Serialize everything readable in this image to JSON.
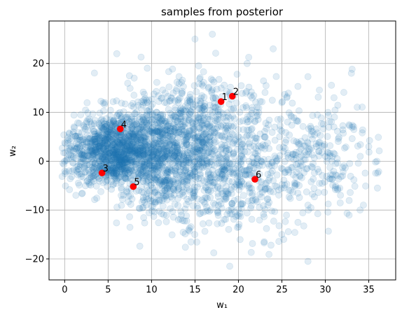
{
  "chart_data": {
    "type": "scatter",
    "title": "samples from posterior",
    "xlabel": "w₁",
    "ylabel": "w₂",
    "xlim": [
      -1.8,
      38.1
    ],
    "ylim": [
      -24.3,
      28.7
    ],
    "xticks": [
      0,
      5,
      10,
      15,
      20,
      25,
      30,
      35
    ],
    "yticks": [
      -20,
      -10,
      0,
      10,
      20
    ],
    "grid": true,
    "colors": {
      "samples": "#1f77b4",
      "highlight": "#ff0000",
      "grid": "#b0b0b0"
    },
    "series": [
      {
        "kind": "cloud",
        "opacity": 0.13,
        "count": 3000,
        "description_points": [
          [
            2,
            2
          ],
          [
            3,
            4
          ],
          [
            4,
            0
          ],
          [
            5,
            6
          ],
          [
            6,
            3
          ],
          [
            7,
            -2
          ],
          [
            8,
            5
          ],
          [
            9,
            1
          ],
          [
            10,
            8
          ],
          [
            11,
            -4
          ],
          [
            12,
            4
          ],
          [
            13,
            0
          ],
          [
            14,
            6
          ],
          [
            15,
            -6
          ],
          [
            16,
            3
          ],
          [
            17,
            10
          ],
          [
            18,
            -2
          ],
          [
            19,
            14
          ],
          [
            20,
            0
          ],
          [
            21,
            8
          ],
          [
            22,
            -8
          ],
          [
            23,
            5
          ],
          [
            24,
            -4
          ],
          [
            25,
            12
          ],
          [
            26,
            -6
          ],
          [
            27,
            2
          ],
          [
            28,
            -9
          ],
          [
            30,
            1
          ],
          [
            31,
            13
          ],
          [
            32,
            -3
          ],
          [
            33,
            18
          ],
          [
            34,
            -10
          ],
          [
            35,
            3
          ],
          [
            36,
            -5.5
          ],
          [
            17,
            26
          ],
          [
            19,
            -21.5
          ],
          [
            28,
            -20.5
          ],
          [
            8,
            17
          ],
          [
            15,
            25
          ],
          [
            21,
            20
          ],
          [
            1,
            6
          ],
          [
            0.5,
            -2
          ],
          [
            0,
            0
          ],
          [
            6,
            22
          ],
          [
            24,
            23
          ]
        ]
      }
    ],
    "highlighted": [
      {
        "label": "1",
        "x": 18.0,
        "y": 12.2
      },
      {
        "label": "2",
        "x": 19.3,
        "y": 13.3
      },
      {
        "label": "3",
        "x": 4.3,
        "y": -2.4
      },
      {
        "label": "4",
        "x": 6.4,
        "y": 6.6
      },
      {
        "label": "5",
        "x": 7.9,
        "y": -5.2
      },
      {
        "label": "6",
        "x": 21.9,
        "y": -3.7
      }
    ]
  }
}
